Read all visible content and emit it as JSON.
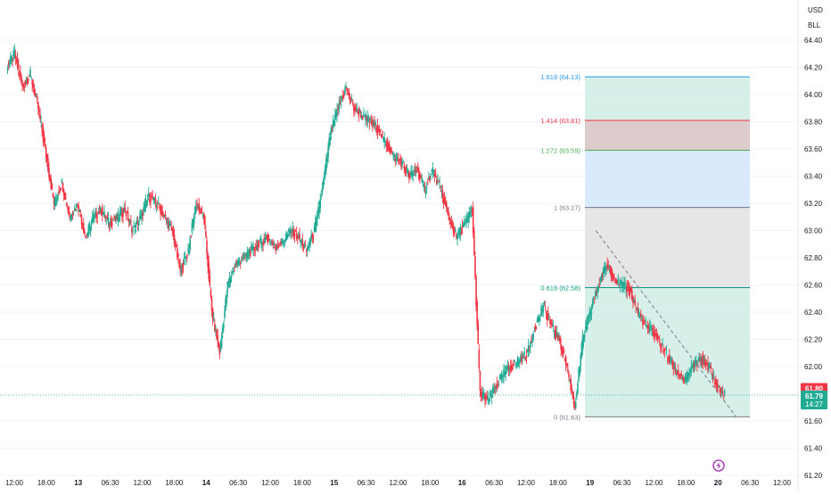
{
  "currency": "USD",
  "unit": "BLL",
  "price_tags": {
    "bid": "61.80",
    "last": "61.79",
    "countdown": "14:27"
  },
  "icons": {
    "replay": "lightning-icon"
  },
  "colors": {
    "up": "#22ab94",
    "down": "#f23645",
    "fib_blue": "#2962ff",
    "zone_green": "#d3ede7",
    "zone_gray": "#e3e3e3",
    "zone_blue": "#d6e8fd",
    "zone_red": "#d8c6c7"
  },
  "chart_data": {
    "type": "candlestick",
    "title": "",
    "ylim": [
      61.2,
      64.4
    ],
    "y_ticks": [
      "61.20",
      "61.40",
      "61.60",
      "61.80",
      "62.00",
      "62.20",
      "62.40",
      "62.60",
      "62.80",
      "63.00",
      "63.20",
      "63.40",
      "63.60",
      "63.80",
      "64.00",
      "64.20",
      "64.40"
    ],
    "x_ticks": [
      "12:00",
      "18:00",
      "13",
      "06:30",
      "12:00",
      "18:00",
      "14",
      "06:30",
      "12:00",
      "18:00",
      "15",
      "06:30",
      "12:00",
      "18:00",
      "16",
      "06:30",
      "12:00",
      "18:00",
      "19",
      "06:30",
      "12:00",
      "18:00",
      "20",
      "06:30",
      "12:00"
    ],
    "series": [
      {
        "values": [
          [
            0,
            64.2
          ],
          [
            0.5,
            64.3
          ],
          [
            1,
            64.05
          ],
          [
            1.5,
            64.15
          ],
          [
            2,
            63.9
          ],
          [
            2.5,
            63.55
          ],
          [
            3,
            63.2
          ],
          [
            3.5,
            63.35
          ],
          [
            4,
            63.1
          ],
          [
            4.5,
            63.2
          ],
          [
            5,
            62.95
          ],
          [
            5.5,
            63.1
          ],
          [
            6,
            63.15
          ],
          [
            6.5,
            63.05
          ],
          [
            7,
            63.1
          ],
          [
            7.5,
            63.15
          ],
          [
            8,
            63.0
          ],
          [
            8.5,
            63.1
          ],
          [
            9,
            63.25
          ],
          [
            9.5,
            63.2
          ],
          [
            10,
            63.1
          ],
          [
            10.5,
            63.0
          ],
          [
            11,
            62.7
          ],
          [
            11.5,
            62.85
          ],
          [
            12,
            63.2
          ],
          [
            12.5,
            63.1
          ],
          [
            13,
            62.4
          ],
          [
            13.5,
            62.1
          ],
          [
            14,
            62.6
          ],
          [
            14.5,
            62.75
          ],
          [
            15,
            62.8
          ],
          [
            15.5,
            62.85
          ],
          [
            16,
            62.9
          ],
          [
            16.5,
            62.95
          ],
          [
            17,
            62.88
          ],
          [
            17.5,
            62.92
          ],
          [
            18,
            63.0
          ],
          [
            18.5,
            62.95
          ],
          [
            19,
            62.85
          ],
          [
            19.5,
            63.0
          ],
          [
            20,
            63.3
          ],
          [
            20.5,
            63.7
          ],
          [
            21,
            63.9
          ],
          [
            21.5,
            64.05
          ],
          [
            22,
            63.9
          ],
          [
            22.5,
            63.85
          ],
          [
            23,
            63.8
          ],
          [
            23.5,
            63.75
          ],
          [
            24,
            63.65
          ],
          [
            24.5,
            63.55
          ],
          [
            25,
            63.5
          ],
          [
            25.5,
            63.4
          ],
          [
            26,
            63.45
          ],
          [
            26.5,
            63.3
          ],
          [
            27,
            63.45
          ],
          [
            27.5,
            63.3
          ],
          [
            28,
            63.1
          ],
          [
            28.5,
            62.95
          ],
          [
            29,
            63.05
          ],
          [
            29.5,
            63.15
          ],
          [
            30,
            61.8
          ],
          [
            30.5,
            61.75
          ],
          [
            31,
            61.85
          ],
          [
            31.5,
            61.95
          ],
          [
            32,
            62.0
          ],
          [
            32.5,
            62.05
          ],
          [
            33,
            62.1
          ],
          [
            33.5,
            62.3
          ],
          [
            34,
            62.45
          ],
          [
            34.5,
            62.3
          ],
          [
            35,
            62.2
          ],
          [
            35.5,
            62.0
          ],
          [
            36,
            61.7
          ],
          [
            36.5,
            62.2
          ],
          [
            37,
            62.4
          ],
          [
            37.5,
            62.6
          ],
          [
            38,
            62.75
          ],
          [
            38.5,
            62.65
          ],
          [
            39,
            62.6
          ],
          [
            39.5,
            62.55
          ],
          [
            40,
            62.4
          ],
          [
            40.5,
            62.3
          ],
          [
            41,
            62.25
          ],
          [
            41.5,
            62.15
          ],
          [
            42,
            62.05
          ],
          [
            42.5,
            61.95
          ],
          [
            43,
            61.9
          ],
          [
            43.5,
            62.0
          ],
          [
            44,
            62.05
          ],
          [
            44.5,
            62.0
          ],
          [
            45,
            61.85
          ],
          [
            45.5,
            61.79
          ]
        ]
      }
    ],
    "fibonacci": [
      {
        "label": "1.618 (64.13)",
        "ratio": 1.618,
        "price": 64.13,
        "color": "#2196f3"
      },
      {
        "label": "1.414 (63.81)",
        "ratio": 1.414,
        "price": 63.81,
        "color": "#f23645"
      },
      {
        "label": "1.272 (63.59)",
        "ratio": 1.272,
        "price": 63.59,
        "color": "#4caf50"
      },
      {
        "label": "1 (63.17)",
        "ratio": 1,
        "price": 63.17,
        "color": "#787b86"
      },
      {
        "label": "0.618 (62.58)",
        "ratio": 0.618,
        "price": 62.58,
        "color": "#089981"
      },
      {
        "label": "0 (61.63)",
        "ratio": 0,
        "price": 61.63,
        "color": "#787b86"
      }
    ],
    "trend_line": {
      "from": [
        37.3,
        63.0
      ],
      "to": [
        46.2,
        61.63
      ]
    }
  }
}
